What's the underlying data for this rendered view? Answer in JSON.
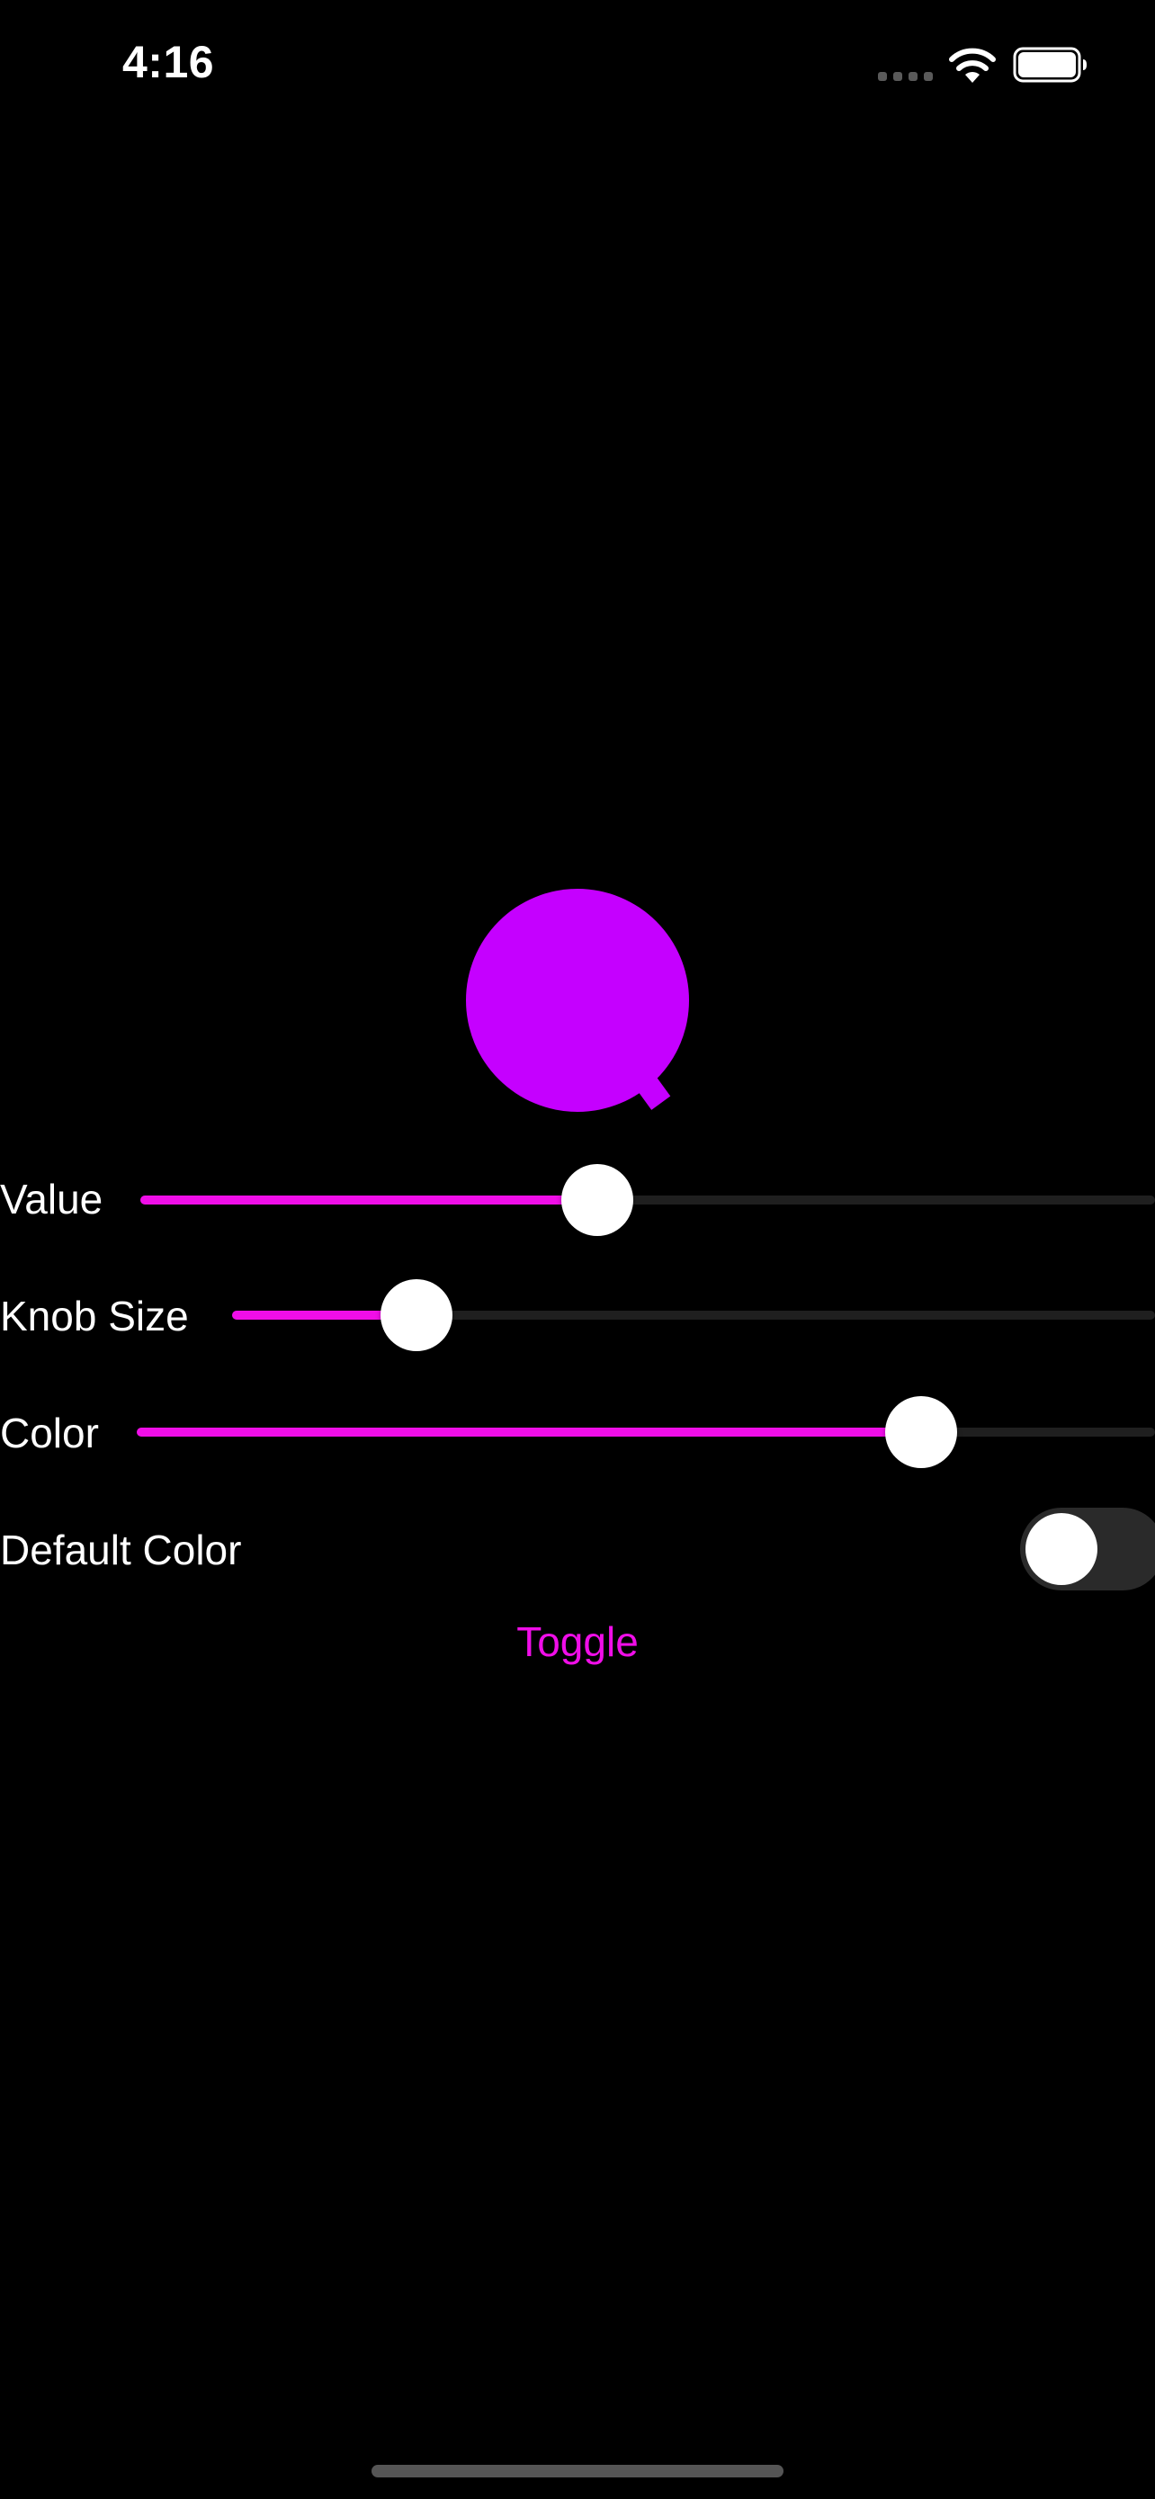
{
  "status_bar": {
    "time": "4:16"
  },
  "icons": {
    "signal": "cellular-signal-icon",
    "wifi": "wifi-icon",
    "battery": "battery-icon"
  },
  "colors": {
    "accent": "#f00ee8",
    "knob_fill": "#c500ff",
    "background": "#000000",
    "track": "#1f1f1f"
  },
  "knob": {
    "value_fraction": 0.45
  },
  "controls": {
    "value": {
      "label": "Value",
      "fraction": 0.45
    },
    "knob_size": {
      "label": "Knob Size",
      "fraction": 0.2
    },
    "color": {
      "label": "Color",
      "fraction": 0.77
    },
    "default_color": {
      "label": "Default Color",
      "on": false
    },
    "toggle_button_label": "Toggle"
  }
}
